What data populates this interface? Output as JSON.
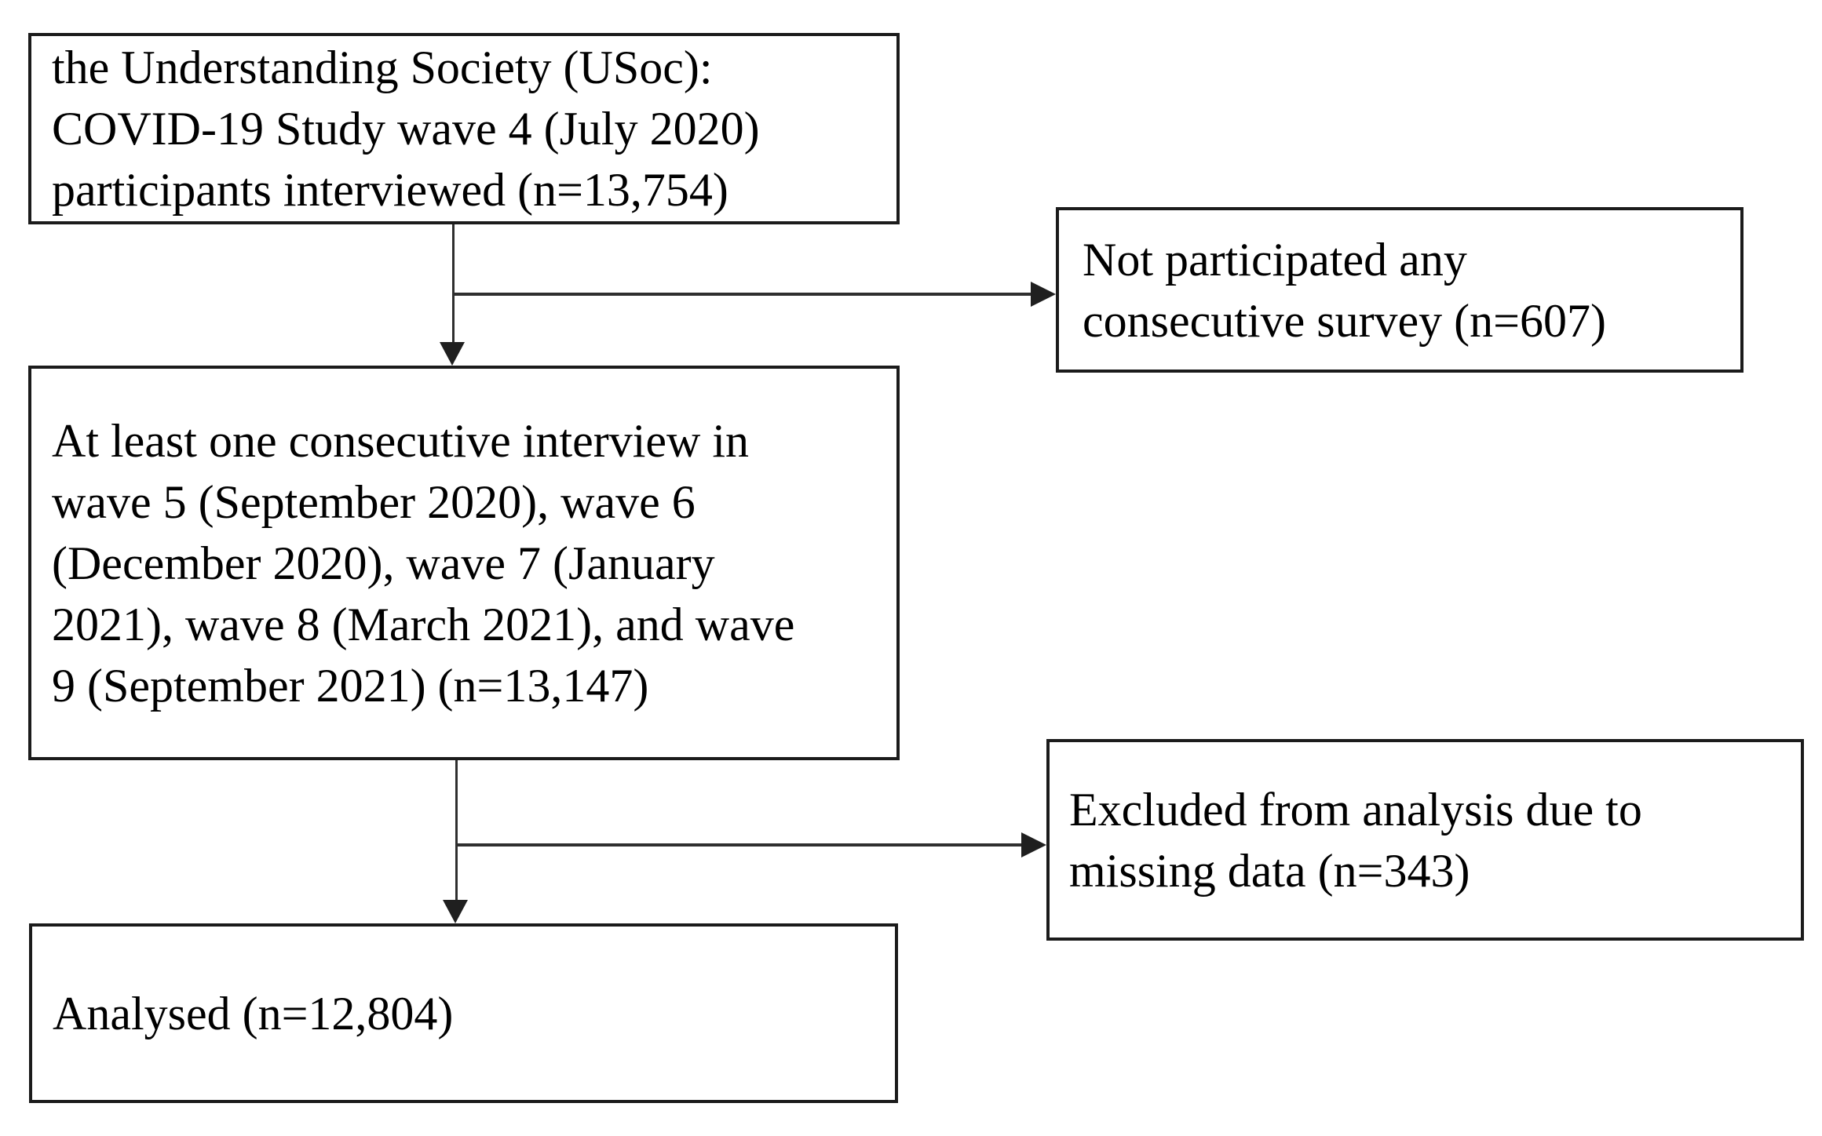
{
  "figure": {
    "background_color": "#ffffff",
    "box_border_color": "#1b1b1b",
    "arrow_color": "#2f2f2f",
    "boxes": {
      "wave4": {
        "text": "the Understanding Society (USoc): COVID-19 Study wave 4 (July 2020) participants interviewed (n=13,754)",
        "lines": [
          "the Understanding Society (USoc):",
          "COVID-19 Study wave 4 (July 2020)",
          "participants interviewed (n=13,754)"
        ]
      },
      "not_participated": {
        "text": "Not participated any consecutive survey (n=607)",
        "lines": [
          "Not participated any",
          "consecutive survey (n=607)"
        ]
      },
      "consecutive": {
        "text": "At least one consecutive interview in wave 5 (September 2020), wave 6 (December 2020), wave 7 (January 2021), wave 8 (March 2021), and wave 9 (September 2021) (n=13,147)",
        "lines": [
          "At least one consecutive interview in",
          "wave 5 (September 2020), wave 6",
          "(December 2020), wave 7 (January",
          "2021), wave 8 (March 2021), and wave",
          "9 (September 2021) (n=13,147)"
        ]
      },
      "excluded": {
        "text": "Excluded from analysis due to missing data (n=343)",
        "lines": [
          "Excluded from analysis due to",
          "missing data (n=343)"
        ]
      },
      "analysed": {
        "text": "Analysed (n=12,804)",
        "lines": [
          "Analysed (n=12,804)"
        ]
      }
    },
    "connectors": [
      {
        "from": "wave4",
        "to": "consecutive",
        "direction": "down"
      },
      {
        "from": "wave4",
        "to": "not_participated",
        "direction": "right"
      },
      {
        "from": "consecutive",
        "to": "analysed",
        "direction": "down"
      },
      {
        "from": "consecutive",
        "to": "excluded",
        "direction": "right"
      }
    ]
  }
}
